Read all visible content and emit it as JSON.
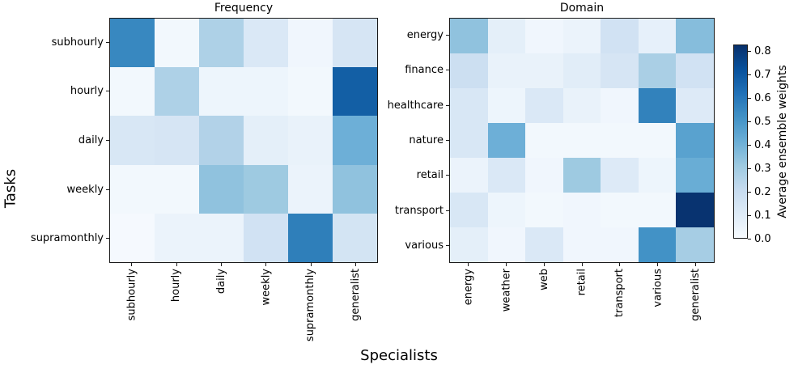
{
  "figure": {
    "supylabel": "Tasks",
    "supxlabel": "Specialists"
  },
  "colorbar": {
    "label": "Average ensemble weights",
    "vmin": 0.0,
    "vmax": 0.83,
    "tick_labels": [
      "0.0",
      "0.1",
      "0.2",
      "0.3",
      "0.4",
      "0.5",
      "0.6",
      "0.7",
      "0.8"
    ],
    "colormap": "Blues",
    "color_low": "#f7fbff",
    "color_high": "#08306b"
  },
  "chart_data": [
    {
      "type": "heatmap",
      "title": "Frequency",
      "rows": [
        "subhourly",
        "hourly",
        "daily",
        "weekly",
        "supramonthly"
      ],
      "columns": [
        "subhourly",
        "hourly",
        "daily",
        "weekly",
        "supramonthly",
        "generalist"
      ],
      "values": [
        [
          0.55,
          0.02,
          0.27,
          0.12,
          0.03,
          0.14
        ],
        [
          0.02,
          0.27,
          0.04,
          0.04,
          0.02,
          0.68
        ],
        [
          0.13,
          0.14,
          0.26,
          0.08,
          0.06,
          0.41
        ],
        [
          0.02,
          0.02,
          0.34,
          0.31,
          0.05,
          0.34
        ],
        [
          0.01,
          0.05,
          0.05,
          0.16,
          0.58,
          0.15
        ]
      ],
      "colormap": "Blues",
      "value_range": [
        0.0,
        0.83
      ]
    },
    {
      "type": "heatmap",
      "title": "Domain",
      "rows": [
        "energy",
        "finance",
        "healthcare",
        "nature",
        "retail",
        "transport",
        "various"
      ],
      "columns": [
        "energy",
        "weather",
        "web",
        "retail",
        "transport",
        "various",
        "generalist"
      ],
      "values": [
        [
          0.34,
          0.08,
          0.03,
          0.05,
          0.16,
          0.07,
          0.36
        ],
        [
          0.18,
          0.06,
          0.06,
          0.09,
          0.14,
          0.28,
          0.16
        ],
        [
          0.13,
          0.04,
          0.12,
          0.06,
          0.03,
          0.57,
          0.11
        ],
        [
          0.13,
          0.41,
          0.02,
          0.02,
          0.02,
          0.02,
          0.46
        ],
        [
          0.05,
          0.12,
          0.03,
          0.31,
          0.11,
          0.04,
          0.42
        ],
        [
          0.13,
          0.04,
          0.02,
          0.03,
          0.02,
          0.02,
          0.82
        ],
        [
          0.08,
          0.03,
          0.12,
          0.03,
          0.03,
          0.52,
          0.29
        ]
      ],
      "colormap": "Blues",
      "value_range": [
        0.0,
        0.83
      ]
    }
  ]
}
